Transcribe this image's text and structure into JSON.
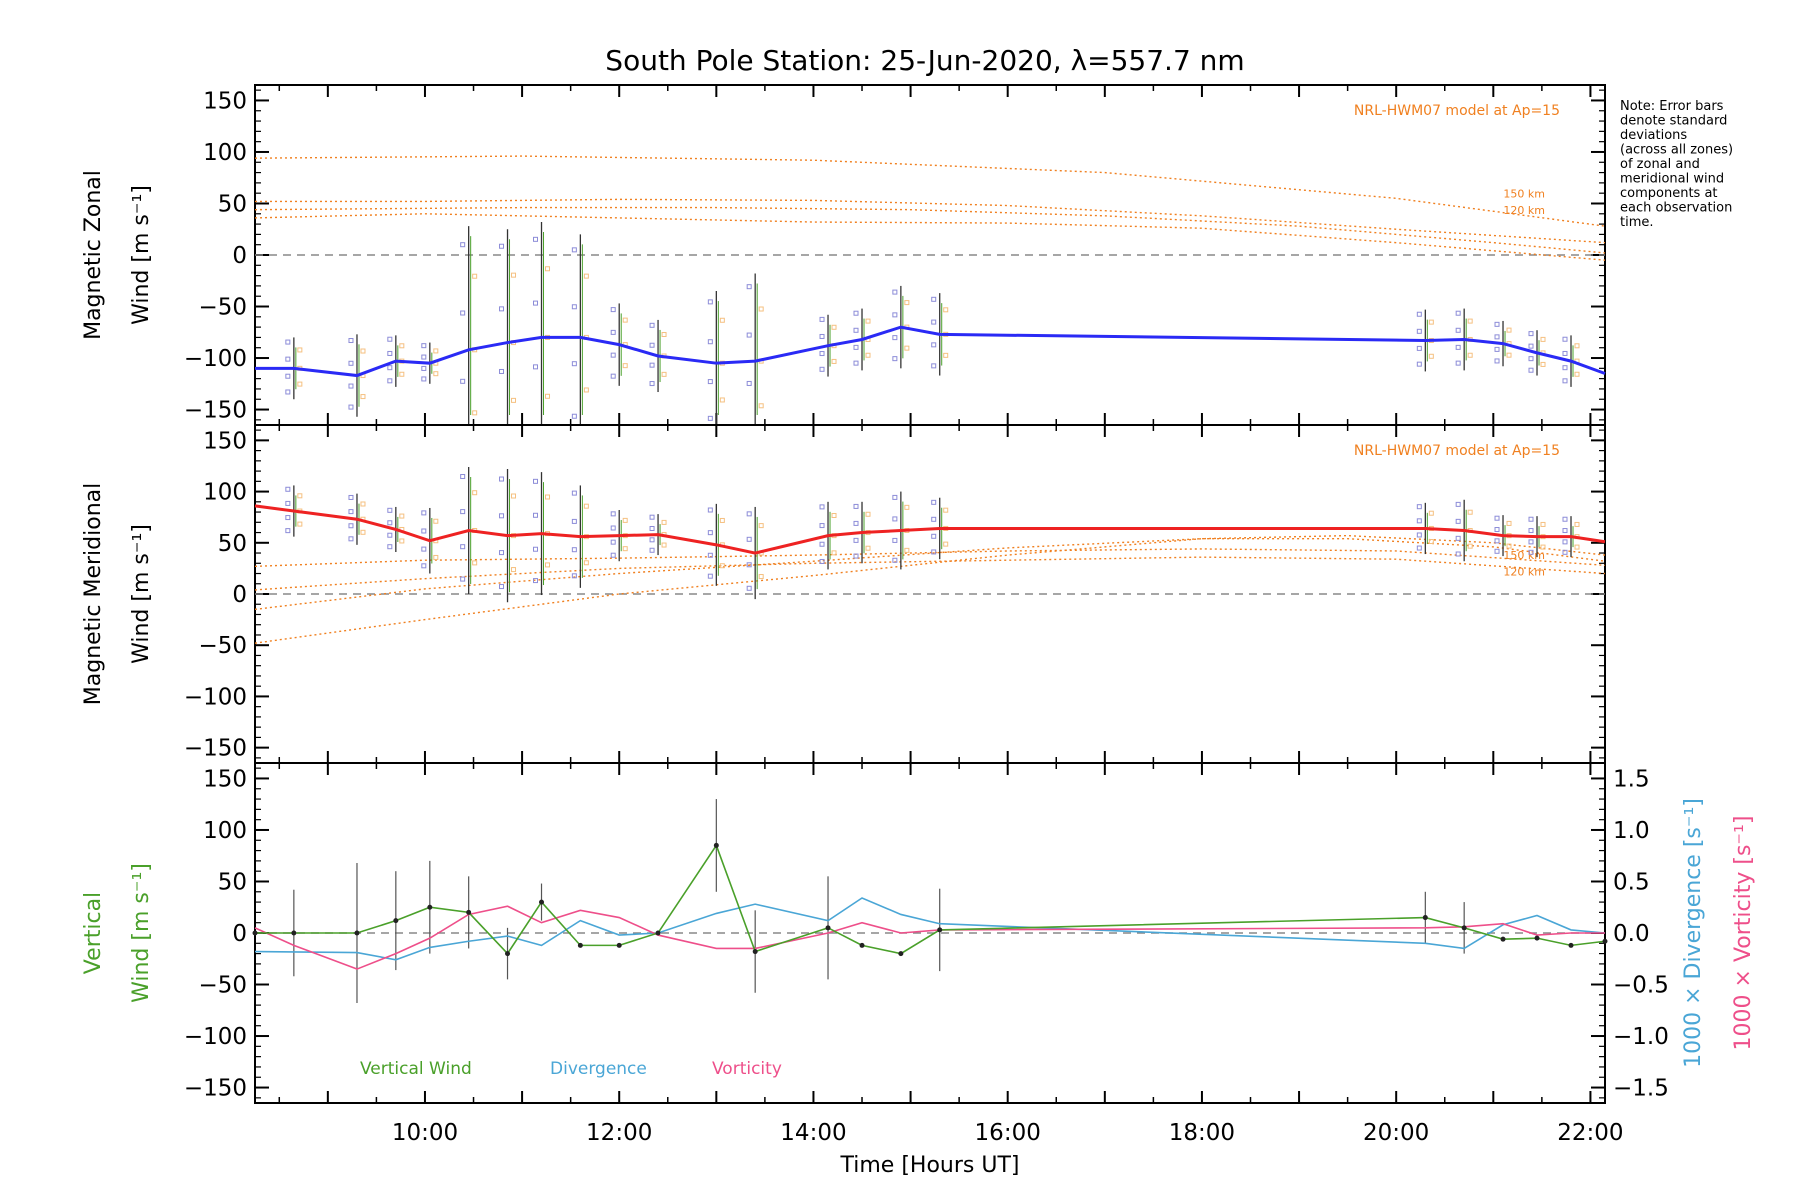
{
  "title": "South Pole Station: 25-Jun-2020, λ=557.7 nm",
  "note": [
    "Note: Error bars",
    "denote standard",
    "deviations",
    "(across all zones)",
    "of zonal and",
    "meridional wind",
    "components at",
    "each observation",
    "time."
  ],
  "colors": {
    "zonal": "#2a2af5",
    "meridional": "#ee2222",
    "model": "#f08020",
    "vertical": "#4aa02a",
    "divergence": "#4aa6d6",
    "vorticity": "#ee4f8a",
    "scatter_blue": "#8c8cd8",
    "scatter_orange": "#f5c080",
    "zero": "#888888",
    "errbar": "#333333"
  },
  "chart_data": [
    {
      "type": "line",
      "panel": "zonal",
      "ylabel_line1": "Magnetic Zonal",
      "ylabel_line2": "Wind [m s⁻¹]",
      "ylim": [
        -165,
        165
      ],
      "yticks": [
        150,
        100,
        50,
        0,
        -50,
        -100,
        -150
      ],
      "ytick_labels": [
        "150",
        "100",
        "50",
        "0",
        "−50",
        "−100",
        "−150"
      ],
      "xlim": [
        8.25,
        22.15
      ],
      "model_label": "NRL-HWM07 model at Ap=15",
      "model_curve_labels": [
        "150 km",
        "120 km"
      ],
      "model_curves": [
        {
          "x": [
            8.25,
            11,
            14,
            17,
            20,
            22.15
          ],
          "y": [
            94,
            96,
            92,
            80,
            55,
            28
          ]
        },
        {
          "x": [
            8.25,
            10,
            12,
            14,
            16,
            18,
            20,
            22.15
          ],
          "y": [
            52,
            52,
            54,
            53,
            48,
            38,
            25,
            12
          ]
        },
        {
          "x": [
            8.25,
            11,
            13,
            15,
            17,
            19,
            21,
            22.15
          ],
          "y": [
            44,
            46,
            46,
            44,
            38,
            28,
            12,
            2
          ]
        },
        {
          "x": [
            8.25,
            10,
            12,
            14,
            16,
            18,
            20,
            22.15
          ],
          "y": [
            36,
            40,
            36,
            32,
            31,
            26,
            12,
            -5
          ]
        }
      ],
      "series": [
        {
          "name": "Zonal wind",
          "x": [
            8.25,
            8.65,
            9.3,
            9.7,
            10.05,
            10.45,
            10.85,
            11.2,
            11.6,
            12.0,
            12.4,
            13.0,
            13.4,
            14.15,
            14.5,
            14.9,
            15.3,
            20.3,
            20.7,
            21.1,
            21.45,
            21.8,
            22.15
          ],
          "y": [
            -110,
            -110,
            -117,
            -103,
            -105,
            -92,
            -85,
            -80,
            -80,
            -87,
            -98,
            -105,
            -103,
            -88,
            -82,
            -70,
            -77,
            -83,
            -82,
            -86,
            -95,
            -103,
            -115
          ],
          "err": [
            0,
            30,
            40,
            25,
            20,
            120,
            110,
            112,
            100,
            40,
            35,
            70,
            85,
            30,
            30,
            40,
            40,
            30,
            30,
            22,
            22,
            25,
            0
          ]
        }
      ]
    },
    {
      "type": "line",
      "panel": "meridional",
      "ylabel_line1": "Magnetic Meridional",
      "ylabel_line2": "Wind [m s⁻¹]",
      "ylim": [
        -165,
        165
      ],
      "yticks": [
        150,
        100,
        50,
        0,
        -50,
        -100,
        -150
      ],
      "ytick_labels": [
        "150",
        "100",
        "50",
        "0",
        "−50",
        "−100",
        "−150"
      ],
      "xlim": [
        8.25,
        22.15
      ],
      "model_label": "NRL-HWM07 model at Ap=15",
      "model_curve_labels": [
        "150 km",
        "120 km"
      ],
      "model_curves": [
        {
          "x": [
            8.25,
            10,
            12,
            14,
            16,
            18,
            19.5,
            21,
            22.15
          ],
          "y": [
            -48,
            -25,
            0,
            18,
            38,
            54,
            57,
            50,
            38
          ]
        },
        {
          "x": [
            8.25,
            10,
            12,
            14,
            16,
            18,
            19.5,
            21,
            22.15
          ],
          "y": [
            -15,
            5,
            20,
            32,
            45,
            54,
            54,
            46,
            32
          ]
        },
        {
          "x": [
            8.25,
            10,
            12,
            14,
            16,
            18,
            20,
            22.15
          ],
          "y": [
            27,
            33,
            35,
            38,
            42,
            44,
            42,
            28
          ]
        },
        {
          "x": [
            8.25,
            10,
            12,
            14,
            16,
            18,
            20,
            22.15
          ],
          "y": [
            4,
            15,
            25,
            30,
            33,
            36,
            34,
            20
          ]
        }
      ],
      "series": [
        {
          "name": "Meridional wind",
          "x": [
            8.25,
            8.65,
            9.3,
            9.7,
            10.05,
            10.45,
            10.85,
            11.2,
            11.6,
            12.0,
            12.4,
            13.0,
            13.4,
            14.15,
            14.5,
            14.9,
            15.3,
            20.3,
            20.7,
            21.1,
            21.45,
            21.8,
            22.15
          ],
          "y": [
            86,
            81,
            73,
            63,
            52,
            62,
            57,
            59,
            56,
            57,
            58,
            48,
            40,
            57,
            60,
            62,
            64,
            64,
            62,
            57,
            56,
            56,
            51
          ],
          "err": [
            0,
            25,
            25,
            22,
            32,
            62,
            65,
            60,
            50,
            25,
            20,
            40,
            45,
            33,
            30,
            38,
            30,
            25,
            30,
            20,
            20,
            20,
            0
          ]
        }
      ]
    },
    {
      "type": "line",
      "panel": "vertical",
      "ylabel_line1": "Vertical",
      "ylabel_line2": "Wind [m s⁻¹]",
      "ylim": [
        -165,
        165
      ],
      "yticks": [
        150,
        100,
        50,
        0,
        -50,
        -100,
        -150
      ],
      "ytick_labels": [
        "150",
        "100",
        "50",
        "0",
        "−50",
        "−100",
        "−150"
      ],
      "y2lim": [
        -1.65,
        1.65
      ],
      "y2ticks": [
        1.5,
        1.0,
        0.5,
        0.0,
        -0.5,
        -1.0,
        -1.5
      ],
      "y2tick_labels": [
        "1.5",
        "1.0",
        "0.5",
        "0.0",
        "−0.5",
        "−1.0",
        "−1.5"
      ],
      "y2label_div": "1000 × Divergence [s⁻¹]",
      "y2label_vort": "1000 × Vorticity [s⁻¹]",
      "xlim": [
        8.25,
        22.15
      ],
      "xticks": [
        10,
        12,
        14,
        16,
        18,
        20,
        22
      ],
      "xtick_labels": [
        "10:00",
        "12:00",
        "14:00",
        "16:00",
        "18:00",
        "20:00",
        "22:00"
      ],
      "xlabel": "Time [Hours UT]",
      "legend": [
        "Vertical Wind",
        "Divergence",
        "Vorticity"
      ],
      "series": [
        {
          "name": "Vertical Wind",
          "x": [
            8.25,
            8.65,
            9.3,
            9.7,
            10.05,
            10.45,
            10.85,
            11.2,
            11.6,
            12.0,
            12.4,
            13.0,
            13.4,
            14.15,
            14.5,
            14.9,
            15.3,
            20.3,
            20.7,
            21.1,
            21.45,
            21.8,
            22.15
          ],
          "y": [
            0,
            0,
            0,
            12,
            25,
            20,
            -20,
            30,
            -12,
            -12,
            0,
            85,
            -18,
            5,
            -12,
            -20,
            3,
            15,
            5,
            -6,
            -5,
            -12,
            -8
          ],
          "err": [
            0,
            42,
            68,
            48,
            45,
            35,
            25,
            18,
            0,
            0,
            0,
            45,
            40,
            50,
            0,
            0,
            40,
            25,
            25,
            0,
            0,
            0,
            0
          ]
        },
        {
          "name": "Divergence",
          "x": [
            8.25,
            9.3,
            9.7,
            10.05,
            10.45,
            10.85,
            11.2,
            11.6,
            12.0,
            12.4,
            13.0,
            13.4,
            14.15,
            14.5,
            14.9,
            15.3,
            20.3,
            20.7,
            21.1,
            21.45,
            21.8,
            22.15
          ],
          "y": [
            -0.18,
            -0.19,
            -0.26,
            -0.14,
            -0.08,
            -0.03,
            -0.12,
            0.12,
            -0.02,
            0.0,
            0.19,
            0.28,
            0.12,
            0.34,
            0.18,
            0.09,
            -0.1,
            -0.15,
            0.08,
            0.17,
            0.03,
            0.0
          ]
        },
        {
          "name": "Vorticity",
          "x": [
            8.25,
            8.65,
            9.3,
            9.7,
            10.05,
            10.45,
            10.85,
            11.2,
            11.6,
            12.0,
            12.4,
            13.0,
            13.4,
            14.15,
            14.5,
            14.9,
            15.3,
            20.3,
            20.7,
            21.1,
            21.45,
            21.8,
            22.15
          ],
          "y": [
            0.05,
            -0.12,
            -0.35,
            -0.2,
            -0.05,
            0.18,
            0.26,
            0.1,
            0.22,
            0.15,
            -0.02,
            -0.15,
            -0.15,
            0.0,
            0.1,
            0.0,
            0.03,
            0.05,
            0.06,
            0.09,
            -0.02,
            0.0,
            0.0
          ]
        }
      ]
    }
  ]
}
